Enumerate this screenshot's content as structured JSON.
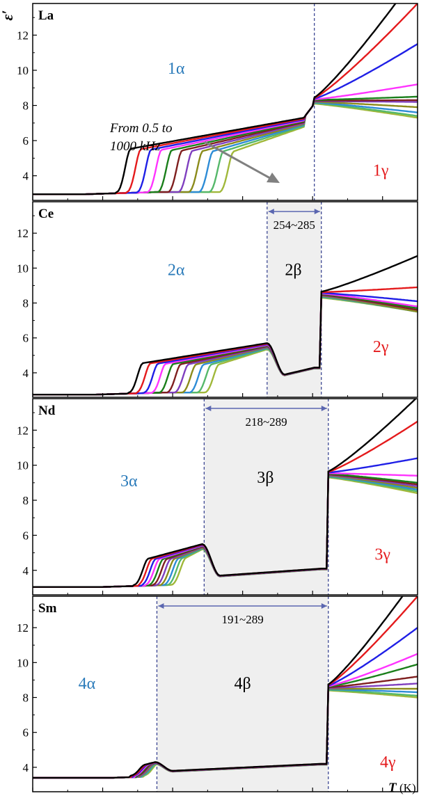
{
  "figure": {
    "ylabel": "ε′",
    "xlabel": "T",
    "xunit": "(K)",
    "annotation": "From 0.5 to\n1000 kHz"
  },
  "chart_data": {
    "type": "line",
    "xlim": [
      120,
      340
    ],
    "ylim": [
      2.6,
      13.8
    ],
    "x_ticks": [
      120,
      160,
      200,
      240,
      280,
      320
    ],
    "y_ticks": [
      4,
      6,
      8,
      10,
      12
    ],
    "series_colors": [
      "#000000",
      "#e41a1c",
      "#1f1fe6",
      "#ff33ff",
      "#1a7f1a",
      "#7f1f1f",
      "#7f3fbf",
      "#8b8b1a",
      "#2d8cd6",
      "#55b86a",
      "#a0b83a"
    ],
    "panels": [
      {
        "sample": "La",
        "phases": [
          {
            "label": "1α",
            "x": 202,
            "y": 9.8,
            "color": "#2b7bba"
          },
          {
            "label": "1γ",
            "x": 319,
            "y": 4.0,
            "color": "#e41a1c"
          }
        ],
        "transitions": [
          281
        ],
        "range_label": "",
        "base": 2.95,
        "curves": {
          "start": 150,
          "hump_start": 168,
          "hump_end": 275,
          "hump_top": 7.3,
          "jump_at": 281,
          "after_low": 8.1,
          "after_high": [
            15.5,
            13.8,
            11.5,
            9.2,
            8.5,
            8.3,
            8.2,
            7.9,
            7.6,
            7.4,
            7.3
          ]
        }
      },
      {
        "sample": "Ce",
        "phases": [
          {
            "label": "2α",
            "x": 202,
            "y": 9.6,
            "color": "#2b7bba"
          },
          {
            "label": "2β",
            "x": 269,
            "y": 9.6,
            "color": "#000000"
          },
          {
            "label": "2γ",
            "x": 319,
            "y": 5.2,
            "color": "#e41a1c"
          }
        ],
        "transitions": [
          254,
          285
        ],
        "range_label": "254~285",
        "base": 2.75,
        "curves": {
          "start": 155,
          "hump_start": 175,
          "hump_end": 254,
          "hump_top": 5.7,
          "valley": 3.9,
          "jump_at": 285,
          "after_low": 8.3,
          "after_high": [
            10.7,
            8.9,
            8.1,
            7.8,
            7.7,
            7.6,
            7.6,
            7.5,
            7.5,
            7.5,
            7.5
          ]
        }
      },
      {
        "sample": "Nd",
        "phases": [
          {
            "label": "3α",
            "x": 175,
            "y": 8.8,
            "color": "#2b7bba"
          },
          {
            "label": "3β",
            "x": 253,
            "y": 9.0,
            "color": "#000000"
          },
          {
            "label": "3γ",
            "x": 320,
            "y": 4.6,
            "color": "#e41a1c"
          }
        ],
        "transitions": [
          218,
          289
        ],
        "range_label": "218~289",
        "base": 3.05,
        "curves": {
          "start": 160,
          "hump_start": 178,
          "hump_end": 217,
          "hump_top": 5.5,
          "valley": 3.7,
          "jump_at": 289,
          "after_low": 9.3,
          "after_high": [
            13.9,
            12.5,
            10.4,
            9.4,
            9.0,
            8.9,
            8.8,
            8.7,
            8.6,
            8.5,
            8.4
          ]
        }
      },
      {
        "sample": "Sm",
        "phases": [
          {
            "label": "4α",
            "x": 151,
            "y": 8.5,
            "color": "#2b7bba"
          },
          {
            "label": "4β",
            "x": 240,
            "y": 8.5,
            "color": "#000000"
          },
          {
            "label": "4γ",
            "x": 323,
            "y": 4.0,
            "color": "#e41a1c"
          }
        ],
        "transitions": [
          191,
          289
        ],
        "range_label": "191~289",
        "base": 3.4,
        "curves": {
          "start": 165,
          "hump_start": 176,
          "hump_end": 190,
          "hump_top": 4.3,
          "valley": 3.8,
          "jump_at": 289,
          "after_low": 8.4,
          "after_high": [
            15.0,
            13.8,
            12.0,
            10.5,
            9.9,
            9.2,
            8.8,
            8.5,
            8.3,
            8.1,
            8.0
          ]
        }
      }
    ]
  }
}
